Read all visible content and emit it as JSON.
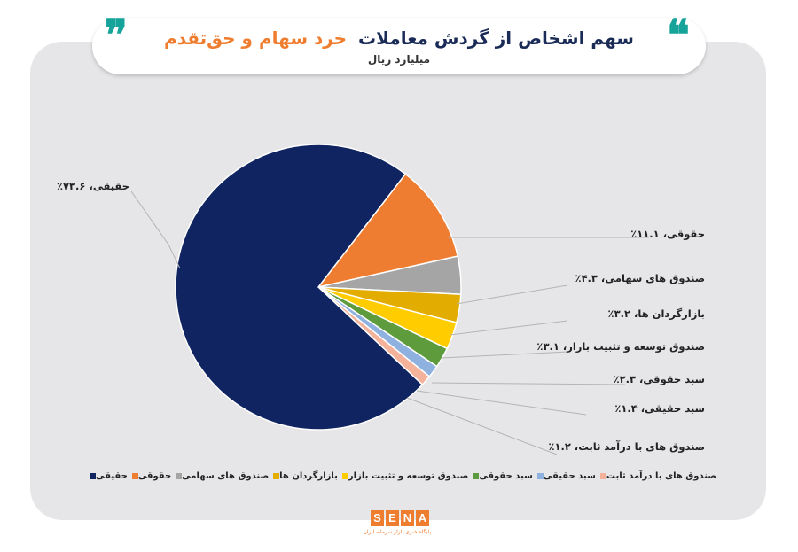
{
  "header": {
    "quote_open": "❝",
    "quote_close": "❞",
    "title_part1": "سهم اشخاص از گردش معاملات",
    "title_part2": "خرد سهام و حق‌تقدم",
    "subtitle": "میلیارد ریال"
  },
  "chart_data": {
    "type": "pie",
    "title": "سهم اشخاص از گردش معاملات خرد سهام و حق‌تقدم",
    "subtitle": "میلیارد ریال",
    "unit": "%",
    "slices": [
      {
        "name": "حقیقی",
        "value": 73.6,
        "label": "حقیقی، ۷۳.۶٪",
        "color": "#0f2460"
      },
      {
        "name": "حقوقی",
        "value": 11.1,
        "label": "حقوقی، ۱۱.۱٪",
        "color": "#ef7d31"
      },
      {
        "name": "صندوق های سهامی",
        "value": 4.3,
        "label": "صندوق های سهامی، ۴.۳٪",
        "color": "#a5a5a5"
      },
      {
        "name": "بازارگردان ها",
        "value": 3.2,
        "label": "بازارگردان ها، ۳.۲٪",
        "color": "#e2ac00"
      },
      {
        "name": "صندوق توسعه و تثبیت بازار",
        "value": 3.1,
        "label": "صندوق توسعه و تثبیت بازار، ۳.۱٪",
        "color": "#ffcc00"
      },
      {
        "name": "سبد حقوقی",
        "value": 2.3,
        "label": "سبد حقوقی، ۲.۳٪",
        "color": "#5e9b3d"
      },
      {
        "name": "سبد حقیقی",
        "value": 1.4,
        "label": "سبد حقیقی، ۱.۴٪",
        "color": "#8eb1e0"
      },
      {
        "name": "صندوق های با درآمد ثابت",
        "value": 1.2,
        "label": "صندوق های با درآمد ثابت، ۱.۲٪",
        "color": "#f5b29b"
      }
    ],
    "legend_position": "bottom"
  },
  "logo": {
    "letters": [
      "S",
      "E",
      "N",
      "A"
    ],
    "tagline": "پایگاه خبری بازار سرمایه ایران"
  }
}
